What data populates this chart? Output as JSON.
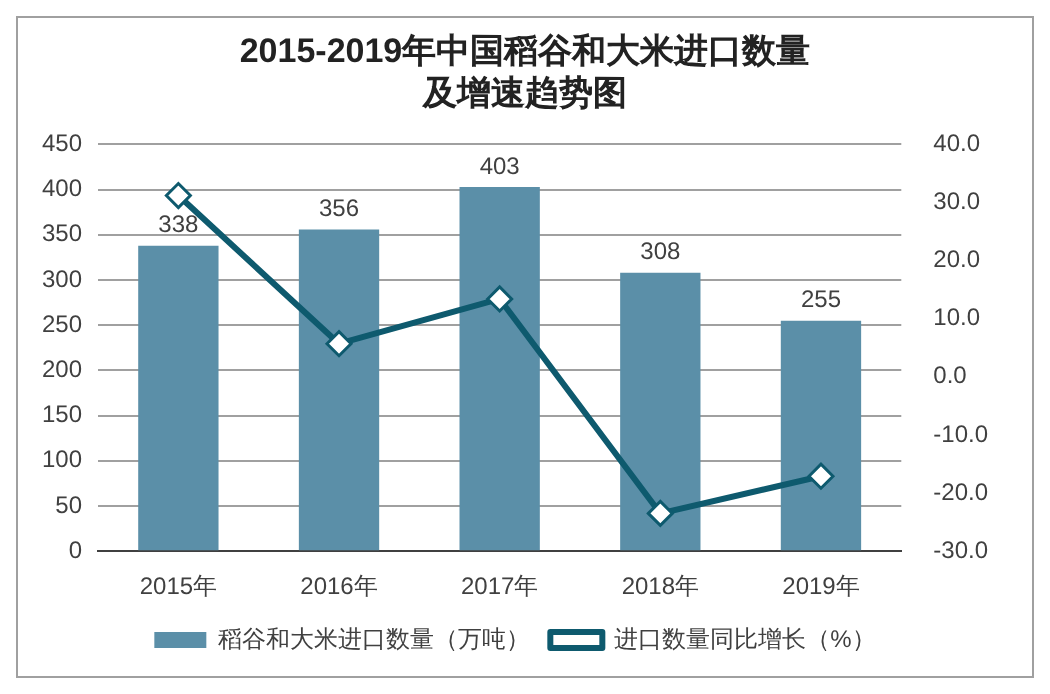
{
  "chart_data": {
    "type": "bar",
    "title": "2015-2019年中国稻谷和大米进口数量及增速趋势图",
    "categories": [
      "2015年",
      "2016年",
      "2017年",
      "2018年",
      "2019年"
    ],
    "series": [
      {
        "name": "稻谷和大米进口数量（万吨）",
        "color": "#5b8fa8",
        "values": [
          338,
          356,
          403,
          308,
          255
        ],
        "data_labels": true
      },
      {
        "name": "进口数量同比增长（%）",
        "type": "line",
        "axis": "y2",
        "color": "#0e5a6e",
        "values": [
          31.2,
          5.7,
          13.4,
          -23.5,
          -17.1
        ],
        "marker": "diamond"
      }
    ],
    "ylim": [
      0,
      450
    ],
    "yticks": [
      0,
      50,
      100,
      150,
      200,
      250,
      300,
      350,
      400,
      450
    ],
    "y2lim": [
      -30,
      40
    ],
    "y2ticks": [
      {
        "value": -30,
        "label": "-30.0"
      },
      {
        "value": -20,
        "label": "-20.0"
      },
      {
        "value": -10,
        "label": "-10.0"
      },
      {
        "value": 0,
        "label": "0.0"
      },
      {
        "value": 10,
        "label": "10.0"
      },
      {
        "value": 20,
        "label": "20.0"
      },
      {
        "value": 30,
        "label": "30.0"
      },
      {
        "value": 40,
        "label": "40.0"
      }
    ],
    "grid": "y",
    "legend": "bottom"
  }
}
